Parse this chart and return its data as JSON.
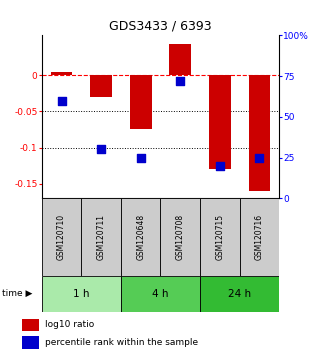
{
  "title": "GDS3433 / 6393",
  "samples": [
    "GSM120710",
    "GSM120711",
    "GSM120648",
    "GSM120708",
    "GSM120715",
    "GSM120716"
  ],
  "log10_ratio": [
    0.005,
    -0.03,
    -0.075,
    0.043,
    -0.13,
    -0.16
  ],
  "percentile_rank": [
    60,
    30,
    25,
    72,
    20,
    25
  ],
  "time_groups": [
    {
      "label": "1 h",
      "start": 0,
      "end": 2,
      "color": "#aaeaaa"
    },
    {
      "label": "4 h",
      "start": 2,
      "end": 4,
      "color": "#55cc55"
    },
    {
      "label": "24 h",
      "start": 4,
      "end": 6,
      "color": "#33bb33"
    }
  ],
  "bar_color": "#cc0000",
  "dot_color": "#0000cc",
  "ylim_left": [
    -0.17,
    0.055
  ],
  "ylim_right": [
    0,
    100
  ],
  "yticks_left": [
    0.0,
    -0.05,
    -0.1,
    -0.15
  ],
  "ytick_labels_left": [
    "0",
    "-0.05",
    "-0.1",
    "-0.15"
  ],
  "yticks_right": [
    0,
    25,
    50,
    75,
    100
  ],
  "ytick_labels_right": [
    "0",
    "25",
    "50",
    "75",
    "100%"
  ],
  "dotted_lines": [
    -0.05,
    -0.1
  ],
  "bar_width": 0.55,
  "dot_size": 35,
  "sample_box_color": "#cccccc",
  "title_fontsize": 9,
  "tick_fontsize": 6.5,
  "legend_label_red": "log10 ratio",
  "legend_label_blue": "percentile rank within the sample",
  "time_label": "time"
}
